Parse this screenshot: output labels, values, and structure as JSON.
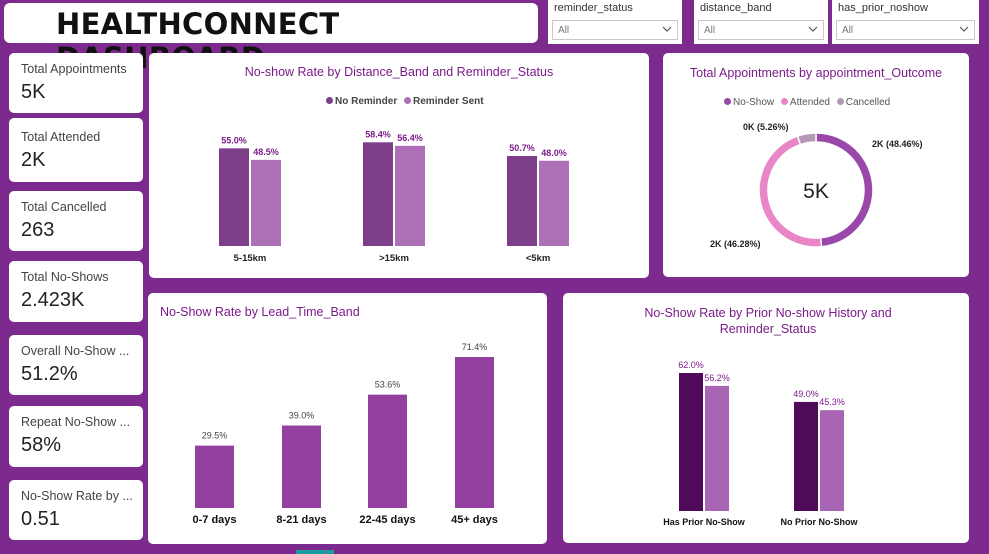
{
  "header": {
    "title": "HEALTHCONNECT DASHBOARD"
  },
  "slicers": [
    {
      "label": "reminder_status",
      "value": "All"
    },
    {
      "label": "distance_band",
      "value": "All"
    },
    {
      "label": "has_prior_noshow",
      "value": "All"
    }
  ],
  "kpis": [
    {
      "label": "Total Appointments",
      "value": "5K"
    },
    {
      "label": "Total Attended",
      "value": "2K"
    },
    {
      "label": "Total Cancelled",
      "value": "263"
    },
    {
      "label": "Total No-Shows",
      "value": "2.423K"
    },
    {
      "label": "Overall No-Show ...",
      "value": "51.2%"
    },
    {
      "label": "Repeat No-Show ...",
      "value": "58%"
    },
    {
      "label": "No-Show Rate by ...",
      "value": "0.51"
    }
  ],
  "colors": {
    "background": "#7d2a8e",
    "no_reminder": "#7d3f89",
    "reminder_sent": "#ad6fb6",
    "lead_time": "#9440a1",
    "prior_has": "#500a5a",
    "prior_sent": "#a765b4",
    "donut_noshow": "#9a47aa",
    "donut_attended": "#e886c8",
    "donut_cancelled": "#b49ab6",
    "title_text": "#7b1c89"
  },
  "chart_data": [
    {
      "type": "bar",
      "title": "No-show Rate by Distance_Band and Reminder_Status",
      "categories": [
        "5-15km",
        ">15km",
        "<5km"
      ],
      "series": [
        {
          "name": "No Reminder",
          "values": [
            55.0,
            58.4,
            50.7
          ],
          "labels": [
            "55.0%",
            "58.4%",
            "50.7%"
          ]
        },
        {
          "name": "Reminder Sent",
          "values": [
            48.5,
            56.4,
            48.0
          ],
          "labels": [
            "48.5%",
            "56.4%",
            "48.0%"
          ]
        }
      ],
      "ylim": [
        0,
        70
      ],
      "legend": "top-center"
    },
    {
      "type": "pie",
      "title": "Total Appointments by appointment_Outcome",
      "center_label": "5K",
      "categories": [
        "No-Show",
        "Attended",
        "Cancelled"
      ],
      "values": [
        48.46,
        46.28,
        5.26
      ],
      "labels": [
        "2K (48.46%)",
        "2K (46.28%)",
        "0K (5.26%)"
      ],
      "legend": "top-center"
    },
    {
      "type": "bar",
      "title": "No-Show Rate by Lead_Time_Band",
      "categories": [
        "0-7 days",
        "8-21 days",
        "22-45 days",
        "45+ days"
      ],
      "values": [
        29.5,
        39.0,
        53.6,
        71.4
      ],
      "labels": [
        "29.5%",
        "39.0%",
        "53.6%",
        "71.4%"
      ],
      "ylim": [
        0,
        75
      ]
    },
    {
      "type": "bar",
      "title": "No-Show Rate by Prior No-show History and Reminder_Status",
      "categories": [
        "Has Prior No-Show",
        "No Prior No-Show"
      ],
      "series": [
        {
          "values": [
            62.0,
            49.0
          ],
          "labels": [
            "62.0%",
            "49.0%"
          ]
        },
        {
          "values": [
            56.2,
            45.3
          ],
          "labels": [
            "56.2%",
            "45.3%"
          ]
        }
      ],
      "ylim": [
        0,
        70
      ]
    }
  ]
}
